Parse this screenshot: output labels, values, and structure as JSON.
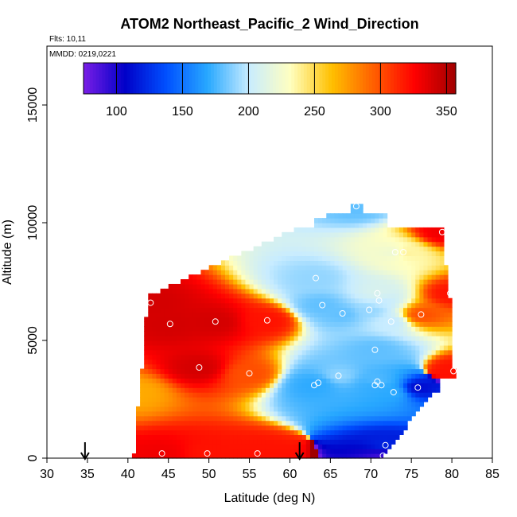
{
  "chart_data": {
    "type": "heatmap",
    "title": "ATOM2 Northeast_Pacific_2 Wind_Direction",
    "flights_label": "Flts: 10,11",
    "dates_label": "MMDD: 0219,0221",
    "xlabel": "Latitude (deg N)",
    "ylabel": "Altitude (m)",
    "xlim": [
      30,
      85
    ],
    "ylim": [
      0,
      17500
    ],
    "xticks": [
      30,
      35,
      40,
      45,
      50,
      55,
      60,
      65,
      70,
      75,
      80,
      85
    ],
    "yticks": [
      0,
      5000,
      10000,
      15000
    ],
    "colorbar": {
      "range": [
        75,
        357
      ],
      "ticks": [
        100,
        150,
        200,
        250,
        300,
        350
      ],
      "colors": [
        "#7a1ee6",
        "#0000c8",
        "#0050ff",
        "#28a8ff",
        "#c8ecff",
        "#ffffc0",
        "#ffc000",
        "#ff6000",
        "#ff0000",
        "#a00000"
      ]
    },
    "flight_start_markers_lat": [
      34.7,
      61.2
    ],
    "observations": [
      {
        "lat": 44.2,
        "alt": 200,
        "value": 330
      },
      {
        "lat": 49.8,
        "alt": 200,
        "value": 320
      },
      {
        "lat": 56.0,
        "alt": 200,
        "value": 320
      },
      {
        "lat": 71.5,
        "alt": 100,
        "value": 90
      },
      {
        "lat": 71.8,
        "alt": 550,
        "value": 120
      },
      {
        "lat": 40.8,
        "alt": 2800,
        "value": 270
      },
      {
        "lat": 72.8,
        "alt": 2800,
        "value": 170
      },
      {
        "lat": 75.8,
        "alt": 3000,
        "value": 110
      },
      {
        "lat": 63.0,
        "alt": 3100,
        "value": 170
      },
      {
        "lat": 63.5,
        "alt": 3200,
        "value": 170
      },
      {
        "lat": 70.5,
        "alt": 3100,
        "value": 170
      },
      {
        "lat": 71.3,
        "alt": 3100,
        "value": 170
      },
      {
        "lat": 70.8,
        "alt": 3250,
        "value": 180
      },
      {
        "lat": 66.0,
        "alt": 3500,
        "value": 190
      },
      {
        "lat": 55.0,
        "alt": 3600,
        "value": 300
      },
      {
        "lat": 48.8,
        "alt": 3850,
        "value": 340
      },
      {
        "lat": 80.2,
        "alt": 3700,
        "value": 320
      },
      {
        "lat": 70.5,
        "alt": 4600,
        "value": 180
      },
      {
        "lat": 45.2,
        "alt": 5700,
        "value": 340
      },
      {
        "lat": 50.8,
        "alt": 5800,
        "value": 340
      },
      {
        "lat": 57.2,
        "alt": 5850,
        "value": 320
      },
      {
        "lat": 72.5,
        "alt": 5800,
        "value": 200
      },
      {
        "lat": 76.2,
        "alt": 6100,
        "value": 300
      },
      {
        "lat": 66.5,
        "alt": 6150,
        "value": 180
      },
      {
        "lat": 69.8,
        "alt": 6300,
        "value": 190
      },
      {
        "lat": 64.0,
        "alt": 6500,
        "value": 180
      },
      {
        "lat": 42.8,
        "alt": 6600,
        "value": 340
      },
      {
        "lat": 71.0,
        "alt": 6700,
        "value": 200
      },
      {
        "lat": 70.8,
        "alt": 7000,
        "value": 210
      },
      {
        "lat": 79.8,
        "alt": 7000,
        "value": 320
      },
      {
        "lat": 63.2,
        "alt": 7650,
        "value": 190
      },
      {
        "lat": 73.0,
        "alt": 8750,
        "value": 220
      },
      {
        "lat": 74.0,
        "alt": 8750,
        "value": 240
      },
      {
        "lat": 78.8,
        "alt": 9600,
        "value": 330
      },
      {
        "lat": 68.2,
        "alt": 10700,
        "value": 180
      }
    ]
  }
}
